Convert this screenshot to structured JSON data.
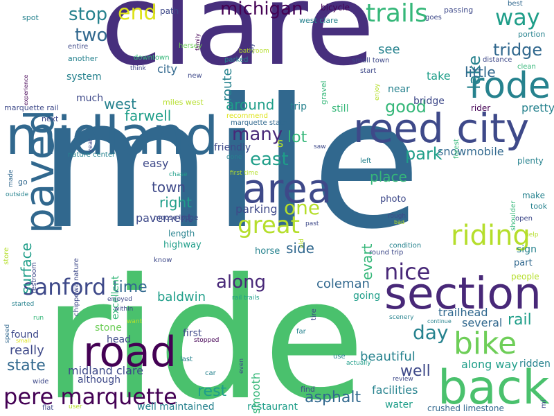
{
  "palette": {
    "dark_purple": "#440154",
    "indigo": "#482878",
    "purple": "#472f7d",
    "slate_blue": "#3e4989",
    "blue": "#31688e",
    "steel_blue": "#2c728e",
    "teal": "#26828e",
    "teal_green": "#1f9e89",
    "green": "#35b779",
    "bright_green": "#4ac16d",
    "light_green": "#6ece58",
    "yellow_green": "#b5de2b",
    "yellow": "#dde318"
  },
  "words": [
    {
      "text": "mile",
      "color": "#31688e"
    },
    {
      "text": "ride",
      "color": "#4ac16d"
    },
    {
      "text": "clare",
      "color": "#472f7d"
    },
    {
      "text": "midland",
      "color": "#31688e"
    },
    {
      "text": "reed city",
      "color": "#3e4989"
    },
    {
      "text": "section",
      "color": "#482878"
    },
    {
      "text": "area",
      "color": "#3e4989"
    },
    {
      "text": "back",
      "color": "#4ac16d"
    },
    {
      "text": "road",
      "color": "#440154"
    },
    {
      "text": "bike",
      "color": "#6ece58"
    },
    {
      "text": "rode",
      "color": "#26828e"
    },
    {
      "text": "paved",
      "color": "#31688e"
    },
    {
      "text": "pere marquette",
      "color": "#440154"
    },
    {
      "text": "trails",
      "color": "#35b779"
    },
    {
      "text": "great",
      "color": "#b5de2b"
    },
    {
      "text": "sanford",
      "color": "#3e4989"
    },
    {
      "text": "riding",
      "color": "#b5de2b"
    },
    {
      "text": "nice",
      "color": "#482878"
    },
    {
      "text": "michigan",
      "color": "#440154"
    },
    {
      "text": "end",
      "color": "#dde318"
    },
    {
      "text": "way",
      "color": "#1f9e89"
    },
    {
      "text": "stop",
      "color": "#26828e"
    },
    {
      "text": "two",
      "color": "#31688e"
    },
    {
      "text": "east",
      "color": "#1f9e89"
    },
    {
      "text": "one",
      "color": "#b5de2b"
    },
    {
      "text": "along",
      "color": "#482878"
    },
    {
      "text": "many",
      "color": "#482878"
    },
    {
      "text": "tridge",
      "color": "#31688e"
    },
    {
      "text": "lake",
      "color": "#26828e"
    },
    {
      "text": "route",
      "color": "#26828e"
    },
    {
      "text": "day",
      "color": "#26828e"
    },
    {
      "text": "good",
      "color": "#35b779"
    },
    {
      "text": "lot",
      "color": "#35b779"
    },
    {
      "text": "park",
      "color": "#1f9e89"
    },
    {
      "text": "time",
      "color": "#31688e"
    },
    {
      "text": "town",
      "color": "#3e4989"
    },
    {
      "text": "right",
      "color": "#1f9e89"
    },
    {
      "text": "rest",
      "color": "#1f9e89"
    },
    {
      "text": "asphalt",
      "color": "#31688e"
    },
    {
      "text": "state",
      "color": "#31688e"
    },
    {
      "text": "well",
      "color": "#3e4989"
    },
    {
      "text": "rail",
      "color": "#1f9e89"
    },
    {
      "text": "beautiful",
      "color": "#26828e"
    },
    {
      "text": "surface",
      "color": "#1f9e89"
    },
    {
      "text": "west",
      "color": "#26828e"
    },
    {
      "text": "farwell",
      "color": "#1f9e89"
    },
    {
      "text": "little",
      "color": "#31688e"
    },
    {
      "text": "see",
      "color": "#26828e"
    },
    {
      "text": "place",
      "color": "#35b779"
    },
    {
      "text": "evart",
      "color": "#35b779"
    },
    {
      "text": "around",
      "color": "#1f9e89"
    },
    {
      "text": "baldwin",
      "color": "#1f9e89"
    },
    {
      "text": "side",
      "color": "#31688e"
    },
    {
      "text": "coleman",
      "color": "#31688e"
    },
    {
      "text": "really",
      "color": "#3e4989"
    },
    {
      "text": "easy",
      "color": "#3e4989"
    },
    {
      "text": "parking",
      "color": "#3e4989"
    },
    {
      "text": "city",
      "color": "#31688e"
    },
    {
      "text": "take",
      "color": "#1f9e89"
    },
    {
      "text": "pretty",
      "color": "#26828e"
    },
    {
      "text": "snowmobile",
      "color": "#31688e"
    },
    {
      "text": "trailhead",
      "color": "#31688e"
    },
    {
      "text": "several",
      "color": "#31688e"
    },
    {
      "text": "along way",
      "color": "#1f9e89"
    },
    {
      "text": "ridden",
      "color": "#26828e"
    },
    {
      "text": "facilities",
      "color": "#26828e"
    },
    {
      "text": "midland clare",
      "color": "#3e4989"
    },
    {
      "text": "pavement",
      "color": "#3e4989"
    },
    {
      "text": "well maintained",
      "color": "#26828e"
    },
    {
      "text": "restaurant",
      "color": "#1f9e89"
    },
    {
      "text": "water",
      "color": "#1f9e89"
    },
    {
      "text": "crushed limestone",
      "color": "#31688e"
    },
    {
      "text": "smooth",
      "color": "#35b779"
    },
    {
      "text": "stone",
      "color": "#6ece58"
    },
    {
      "text": "head",
      "color": "#3e4989"
    },
    {
      "text": "first",
      "color": "#3e4989"
    },
    {
      "text": "found",
      "color": "#3e4989"
    },
    {
      "text": "although",
      "color": "#3e4989"
    },
    {
      "text": "going",
      "color": "#1f9e89"
    },
    {
      "text": "excellent",
      "color": "#35b779"
    },
    {
      "text": "highway",
      "color": "#1f9e89"
    },
    {
      "text": "length",
      "color": "#26828e"
    },
    {
      "text": "horse",
      "color": "#26828e"
    },
    {
      "text": "bridge",
      "color": "#3e4989"
    },
    {
      "text": "trip",
      "color": "#26828e"
    },
    {
      "text": "near",
      "color": "#26828e"
    },
    {
      "text": "still",
      "color": "#35b779"
    },
    {
      "text": "much",
      "color": "#3e4989"
    },
    {
      "text": "system",
      "color": "#26828e"
    },
    {
      "text": "friendly",
      "color": "#3e4989"
    },
    {
      "text": "photo",
      "color": "#3e4989"
    },
    {
      "text": "make",
      "color": "#26828e"
    },
    {
      "text": "sign",
      "color": "#26828e"
    },
    {
      "text": "part",
      "color": "#31688e"
    },
    {
      "text": "people",
      "color": "#b5de2b"
    },
    {
      "text": "plenty",
      "color": "#26828e"
    },
    {
      "text": "took",
      "color": "#26828e"
    },
    {
      "text": "rider",
      "color": "#440154"
    },
    {
      "text": "bicycle",
      "color": "#440154"
    },
    {
      "text": "path",
      "color": "#3e4989"
    },
    {
      "text": "passing",
      "color": "#3e4989"
    },
    {
      "text": "best",
      "color": "#31688e"
    },
    {
      "text": "goes",
      "color": "#3e4989"
    },
    {
      "text": "portion",
      "color": "#26828e"
    },
    {
      "text": "distance",
      "color": "#3e4989"
    },
    {
      "text": "clean",
      "color": "#35b779"
    },
    {
      "text": "start",
      "color": "#3e4989"
    },
    {
      "text": "small town",
      "color": "#3e4989"
    },
    {
      "text": "west clare",
      "color": "#26828e"
    },
    {
      "text": "spot",
      "color": "#26828e"
    },
    {
      "text": "entire",
      "color": "#3e4989"
    },
    {
      "text": "another",
      "color": "#26828e"
    },
    {
      "text": "downtown",
      "color": "#35b779"
    },
    {
      "text": "hersey",
      "color": "#6ece58"
    },
    {
      "text": "bathroom",
      "color": "#b5de2b"
    },
    {
      "text": "parked",
      "color": "#26828e"
    },
    {
      "text": "think",
      "color": "#3e4989"
    },
    {
      "text": "new",
      "color": "#3e4989"
    },
    {
      "text": "gravel",
      "color": "#35b779"
    },
    {
      "text": "marquette rail",
      "color": "#3e4989"
    },
    {
      "text": "miles west",
      "color": "#b5de2b"
    },
    {
      "text": "recommend",
      "color": "#dde318"
    },
    {
      "text": "marquette state",
      "color": "#31688e"
    },
    {
      "text": "next",
      "color": "#3e4989"
    },
    {
      "text": "nature center",
      "color": "#26828e"
    },
    {
      "text": "done",
      "color": "#26828e"
    },
    {
      "text": "first time",
      "color": "#b5de2b"
    },
    {
      "text": "chase",
      "color": "#1f9e89"
    },
    {
      "text": "go",
      "color": "#31688e"
    },
    {
      "text": "outside",
      "color": "#26828e"
    },
    {
      "text": "moose lodge",
      "color": "#3e4989"
    },
    {
      "text": "store",
      "color": "#b5de2b"
    },
    {
      "text": "restroom",
      "color": "#3e4989"
    },
    {
      "text": "chippewa nature",
      "color": "#3e4989"
    },
    {
      "text": "past",
      "color": "#3e4989"
    },
    {
      "text": "condition",
      "color": "#26828e"
    },
    {
      "text": "round trip",
      "color": "#3e4989"
    },
    {
      "text": "rough",
      "color": "#3e4989"
    },
    {
      "text": "bad",
      "color": "#b5de2b"
    },
    {
      "text": "help",
      "color": "#b5de2b"
    },
    {
      "text": "know",
      "color": "#3e4989"
    },
    {
      "text": "open",
      "color": "#3e4989"
    },
    {
      "text": "left",
      "color": "#26828e"
    },
    {
      "text": "saw",
      "color": "#3e4989"
    },
    {
      "text": "rail trails",
      "color": "#1f9e89"
    },
    {
      "text": "enjoyed",
      "color": "#3e4989"
    },
    {
      "text": "within",
      "color": "#3e4989"
    },
    {
      "text": "started",
      "color": "#26828e"
    },
    {
      "text": "run",
      "color": "#35b779"
    },
    {
      "text": "small",
      "color": "#dde318"
    },
    {
      "text": "want",
      "color": "#b5de2b"
    },
    {
      "text": "stopped",
      "color": "#440154"
    },
    {
      "text": "far",
      "color": "#26828e"
    },
    {
      "text": "last",
      "color": "#26828e"
    },
    {
      "text": "even",
      "color": "#3e4989"
    },
    {
      "text": "car",
      "color": "#26828e"
    },
    {
      "text": "use",
      "color": "#26828e"
    },
    {
      "text": "actually",
      "color": "#1f9e89"
    },
    {
      "text": "review",
      "color": "#3e4989"
    },
    {
      "text": "scenery",
      "color": "#26828e"
    },
    {
      "text": "continue",
      "color": "#26828e"
    },
    {
      "text": "find",
      "color": "#3e4989"
    },
    {
      "text": "wide",
      "color": "#3e4989"
    },
    {
      "text": "flat",
      "color": "#3e4989"
    },
    {
      "text": "user",
      "color": "#b5de2b"
    },
    {
      "text": "mi",
      "color": "#3e4989"
    },
    {
      "text": "experience",
      "color": "#440154"
    },
    {
      "text": "family",
      "color": "#440154"
    },
    {
      "text": "say",
      "color": "#3e4989"
    },
    {
      "text": "enjoy",
      "color": "#b5de2b"
    },
    {
      "text": "forest",
      "color": "#35b779"
    },
    {
      "text": "shoulder",
      "color": "#35b779"
    },
    {
      "text": "old",
      "color": "#b5de2b"
    },
    {
      "text": "year",
      "color": "#3e4989"
    },
    {
      "text": "speed",
      "color": "#31688e"
    },
    {
      "text": "tire",
      "color": "#3e4989"
    },
    {
      "text": "made",
      "color": "#31688e"
    },
    {
      "text": "s",
      "color": "#b5de2b"
    }
  ]
}
